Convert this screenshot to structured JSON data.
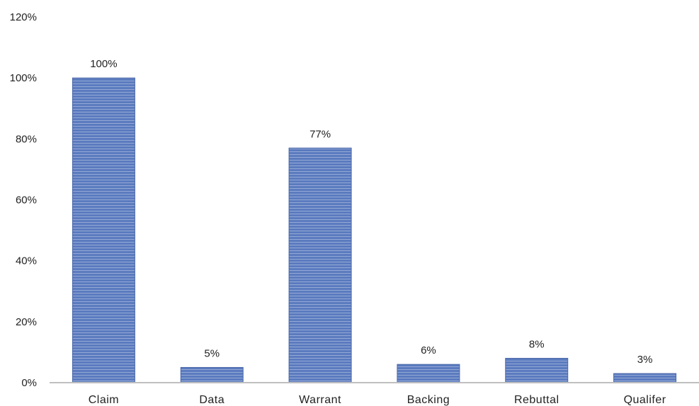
{
  "chart_data": {
    "type": "bar",
    "categories": [
      "Claim",
      "Data",
      "Warrant",
      "Backing",
      "Rebuttal",
      "Qualifer"
    ],
    "values": [
      100,
      5,
      77,
      6,
      8,
      3
    ],
    "data_labels": [
      "100%",
      "5%",
      "77%",
      "6%",
      "8%",
      "3%"
    ],
    "title": "",
    "xlabel": "",
    "ylabel": "",
    "ylim": [
      0,
      120
    ],
    "y_ticks": [
      0,
      20,
      40,
      60,
      80,
      100,
      120
    ],
    "y_tick_labels": [
      "0%",
      "20%",
      "40%",
      "60%",
      "80%",
      "100%",
      "120%"
    ],
    "grid": false,
    "legend": "none",
    "bar_color": "#5b7bbf",
    "bar_stripe_color": "#ffffff",
    "axis_color": "#bfbfbf"
  }
}
